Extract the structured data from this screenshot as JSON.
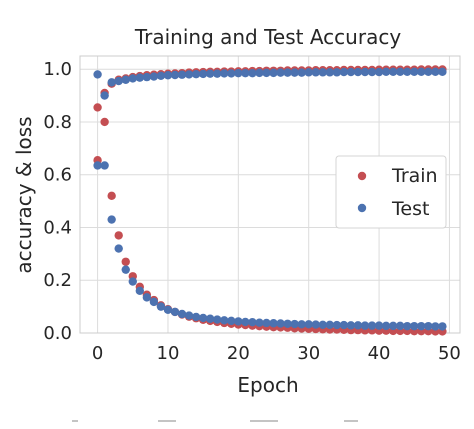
{
  "chart_data": {
    "type": "scatter",
    "title": "Training and Test Accuracy",
    "xlabel": "Epoch",
    "ylabel": "accuracy & loss",
    "xlim": [
      -2.5,
      51.5
    ],
    "ylim": [
      0.0,
      1.05
    ],
    "xticks": [
      0,
      10,
      20,
      30,
      40,
      50
    ],
    "yticks": [
      0.0,
      0.2,
      0.4,
      0.6,
      0.8,
      1.0
    ],
    "xtick_labels": [
      "0",
      "10",
      "20",
      "30",
      "40",
      "50"
    ],
    "ytick_labels": [
      "0.0",
      "0.2",
      "0.4",
      "0.6",
      "0.8",
      "1.0"
    ],
    "grid": true,
    "legend_position": "center-right",
    "series": [
      {
        "name": "Train",
        "color": "#c44e52",
        "groups": [
          {
            "x": [
              0,
              1,
              2,
              3,
              4,
              5,
              6,
              7,
              8,
              9,
              10,
              11,
              12,
              13,
              14,
              15,
              16,
              17,
              18,
              19,
              20,
              21,
              22,
              23,
              24,
              25,
              26,
              27,
              28,
              29,
              30,
              31,
              32,
              33,
              34,
              35,
              36,
              37,
              38,
              39,
              40,
              41,
              42,
              43,
              44,
              45,
              46,
              47,
              48,
              49
            ],
            "y": [
              0.855,
              0.91,
              0.945,
              0.96,
              0.965,
              0.97,
              0.974,
              0.977,
              0.979,
              0.981,
              0.983,
              0.984,
              0.985,
              0.987,
              0.988,
              0.989,
              0.99,
              0.99,
              0.991,
              0.991,
              0.992,
              0.992,
              0.993,
              0.993,
              0.994,
              0.994,
              0.994,
              0.995,
              0.995,
              0.995,
              0.995,
              0.996,
              0.996,
              0.996,
              0.996,
              0.997,
              0.997,
              0.997,
              0.997,
              0.997,
              0.998,
              0.998,
              0.998,
              0.998,
              0.998,
              0.998,
              0.999,
              0.999,
              0.999,
              0.999
            ]
          },
          {
            "x": [
              0,
              1,
              2,
              3,
              4,
              5,
              6,
              7,
              8,
              9,
              10,
              11,
              12,
              13,
              14,
              15,
              16,
              17,
              18,
              19,
              20,
              21,
              22,
              23,
              24,
              25,
              26,
              27,
              28,
              29,
              30,
              31,
              32,
              33,
              34,
              35,
              36,
              37,
              38,
              39,
              40,
              41,
              42,
              43,
              44,
              45,
              46,
              47,
              48,
              49
            ],
            "y": [
              0.655,
              0.8,
              0.52,
              0.37,
              0.27,
              0.215,
              0.175,
              0.145,
              0.125,
              0.105,
              0.09,
              0.08,
              0.07,
              0.062,
              0.056,
              0.05,
              0.046,
              0.042,
              0.038,
              0.035,
              0.032,
              0.03,
              0.028,
              0.026,
              0.024,
              0.022,
              0.021,
              0.02,
              0.018,
              0.017,
              0.016,
              0.015,
              0.014,
              0.013,
              0.013,
              0.012,
              0.011,
              0.011,
              0.01,
              0.01,
              0.009,
              0.009,
              0.008,
              0.008,
              0.008,
              0.007,
              0.007,
              0.007,
              0.006,
              0.006
            ]
          }
        ]
      },
      {
        "name": "Test",
        "color": "#4c72b0",
        "groups": [
          {
            "x": [
              0,
              1,
              2,
              3,
              4,
              5,
              6,
              7,
              8,
              9,
              10,
              11,
              12,
              13,
              14,
              15,
              16,
              17,
              18,
              19,
              20,
              21,
              22,
              23,
              24,
              25,
              26,
              27,
              28,
              29,
              30,
              31,
              32,
              33,
              34,
              35,
              36,
              37,
              38,
              39,
              40,
              41,
              42,
              43,
              44,
              45,
              46,
              47,
              48,
              49
            ],
            "y": [
              0.98,
              0.9,
              0.95,
              0.955,
              0.96,
              0.965,
              0.968,
              0.97,
              0.972,
              0.975,
              0.977,
              0.978,
              0.979,
              0.98,
              0.981,
              0.982,
              0.983,
              0.983,
              0.984,
              0.984,
              0.985,
              0.985,
              0.985,
              0.986,
              0.986,
              0.986,
              0.987,
              0.987,
              0.987,
              0.987,
              0.988,
              0.988,
              0.988,
              0.988,
              0.988,
              0.989,
              0.989,
              0.989,
              0.989,
              0.989,
              0.989,
              0.99,
              0.99,
              0.99,
              0.99,
              0.99,
              0.99,
              0.99,
              0.99,
              0.99
            ]
          },
          {
            "x": [
              0,
              1,
              2,
              3,
              4,
              5,
              6,
              7,
              8,
              9,
              10,
              11,
              12,
              13,
              14,
              15,
              16,
              17,
              18,
              19,
              20,
              21,
              22,
              23,
              24,
              25,
              26,
              27,
              28,
              29,
              30,
              31,
              32,
              33,
              34,
              35,
              36,
              37,
              38,
              39,
              40,
              41,
              42,
              43,
              44,
              45,
              46,
              47,
              48,
              49
            ],
            "y": [
              0.635,
              0.635,
              0.43,
              0.32,
              0.24,
              0.195,
              0.16,
              0.135,
              0.118,
              0.1,
              0.088,
              0.08,
              0.072,
              0.066,
              0.061,
              0.057,
              0.054,
              0.051,
              0.048,
              0.046,
              0.044,
              0.042,
              0.041,
              0.039,
              0.038,
              0.037,
              0.036,
              0.035,
              0.034,
              0.033,
              0.033,
              0.032,
              0.031,
              0.031,
              0.03,
              0.03,
              0.029,
              0.029,
              0.028,
              0.028,
              0.028,
              0.027,
              0.027,
              0.027,
              0.026,
              0.026,
              0.026,
              0.026,
              0.025,
              0.025
            ]
          }
        ]
      }
    ]
  },
  "colors": {
    "background": "#ffffff",
    "grid": "#dcdcdc",
    "axes_edge": "#cccccc",
    "text": "#262626",
    "legend_edge": "#d4d4d4"
  }
}
